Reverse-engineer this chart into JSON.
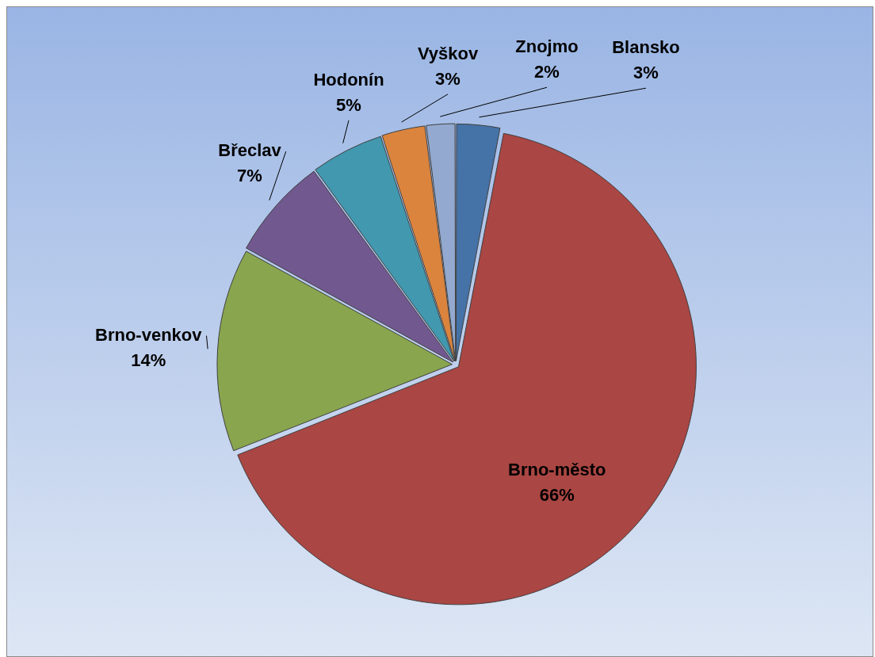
{
  "chart_data": {
    "type": "pie",
    "categories": [
      "Blansko",
      "Brno-město",
      "Brno-venkov",
      "Břeclav",
      "Hodonín",
      "Vyškov",
      "Znojmo"
    ],
    "values": [
      3,
      66,
      14,
      7,
      5,
      3,
      2
    ],
    "value_labels": [
      "3%",
      "66%",
      "14%",
      "7%",
      "5%",
      "3%",
      "2%"
    ],
    "colors": [
      "#4572a7",
      "#aa4643",
      "#89a54e",
      "#71588f",
      "#4198af",
      "#db843d",
      "#93a9cf"
    ],
    "legend": false
  }
}
